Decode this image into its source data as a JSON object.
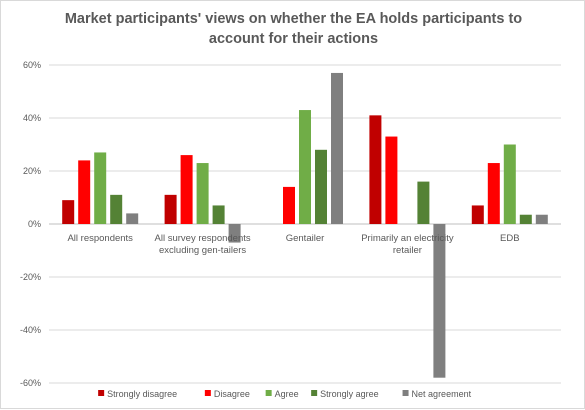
{
  "chart_data": {
    "type": "bar",
    "title_lines": [
      "Market participants' views on whether the EA holds participants to",
      "account for their actions"
    ],
    "categories": [
      [
        "All respondents"
      ],
      [
        "All survey respondents",
        "excluding gen-tailers"
      ],
      [
        "Gentailer"
      ],
      [
        "Primarily an electricity",
        "retailer"
      ],
      [
        "EDB"
      ]
    ],
    "y_ticks": [
      "60%",
      "40%",
      "20%",
      "0%",
      "-20%",
      "-40%",
      "-60%"
    ],
    "ylim": [
      -60,
      60
    ],
    "grid": true,
    "legend_position": "bottom",
    "series": [
      {
        "name": "Strongly disagree",
        "color": "#c00000",
        "values": [
          9,
          11,
          0,
          41,
          7
        ]
      },
      {
        "name": "Disagree",
        "color": "#ff0000",
        "values": [
          24,
          26,
          14,
          33,
          23
        ]
      },
      {
        "name": "Agree",
        "color": "#70ad47",
        "values": [
          27,
          23,
          43,
          0,
          30
        ]
      },
      {
        "name": "Strongly agree",
        "color": "#548235",
        "values": [
          11,
          7,
          28,
          16,
          3.5
        ]
      },
      {
        "name": "Net agreement",
        "color": "#7f7f7f",
        "values": [
          4,
          -7,
          57,
          -58,
          3.5
        ]
      }
    ]
  }
}
